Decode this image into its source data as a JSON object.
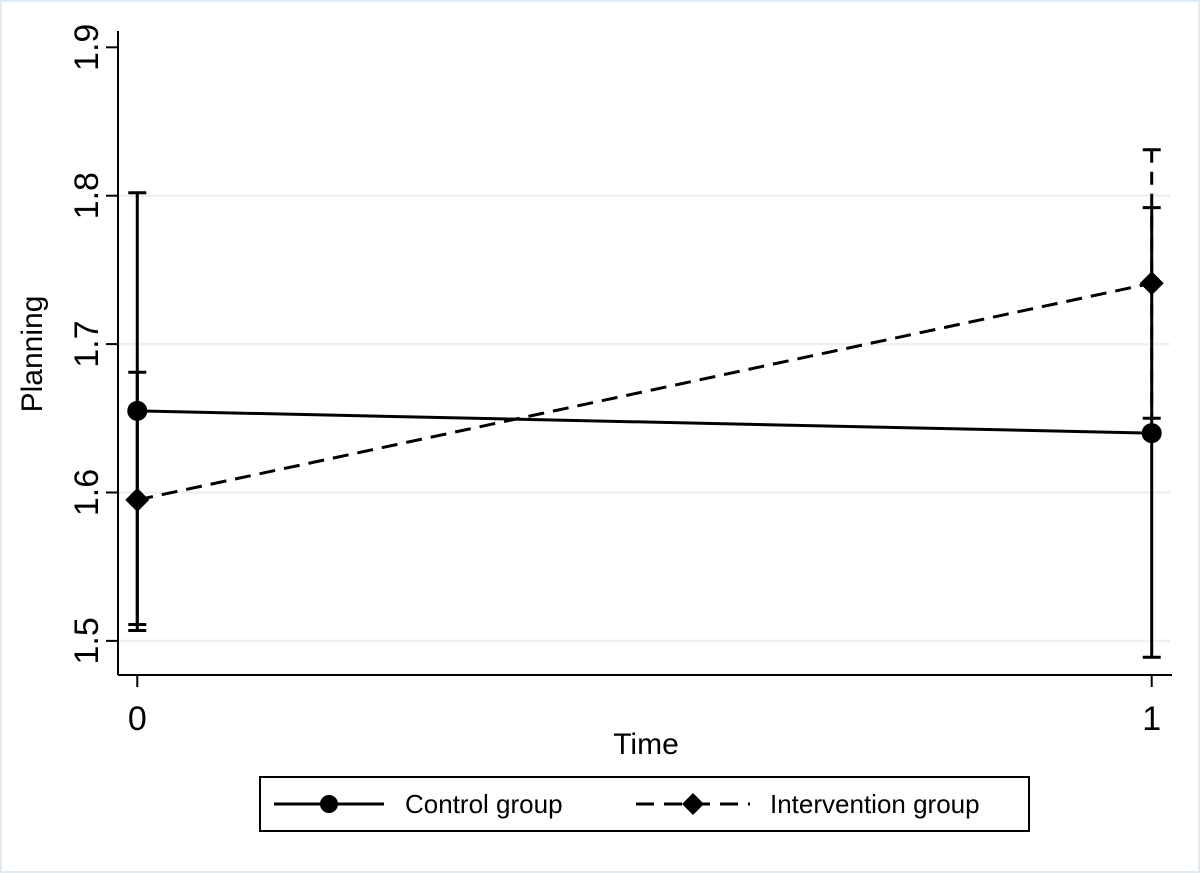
{
  "figure": {
    "background": "#ffffff",
    "border_color": "#dfeaf2"
  },
  "chart_data": {
    "type": "line",
    "title": "",
    "xlabel": "Time",
    "ylabel": "Planning",
    "xlim": [
      -0.019,
      1.02
    ],
    "ylim": [
      1.477,
      1.911
    ],
    "x_ticks": [
      {
        "value": 0,
        "label": "0"
      },
      {
        "value": 1,
        "label": "1"
      }
    ],
    "y_ticks": [
      {
        "value": 1.5,
        "label": "1.5"
      },
      {
        "value": 1.6,
        "label": "1.6"
      },
      {
        "value": 1.7,
        "label": "1.7"
      },
      {
        "value": 1.8,
        "label": "1.8"
      },
      {
        "value": 1.9,
        "label": "1.9"
      }
    ],
    "gridline_values": [
      1.5,
      1.6,
      1.7,
      1.8
    ],
    "gridline_color": "#eaf2f4",
    "axis_color": "#000000",
    "grid_on": true,
    "legend_position": "bottom",
    "series": [
      {
        "name": "Control group",
        "line_style": "solid",
        "marker": "circle",
        "color": "#000000",
        "points": [
          {
            "x": 0,
            "y": 1.655,
            "ci_low": 1.507,
            "ci_high": 1.802
          },
          {
            "x": 1,
            "y": 1.64,
            "ci_low": 1.489,
            "ci_high": 1.792
          }
        ],
        "error_bar_style": "solid"
      },
      {
        "name": "Intervention group",
        "line_style": "dashed",
        "marker": "diamond",
        "color": "#000000",
        "points": [
          {
            "x": 0,
            "y": 1.595,
            "ci_low": 1.511,
            "ci_high": 1.681
          },
          {
            "x": 1,
            "y": 1.741,
            "ci_low": 1.65,
            "ci_high": 1.831
          }
        ],
        "error_bar_style": "dashed_at_x1"
      }
    ]
  }
}
